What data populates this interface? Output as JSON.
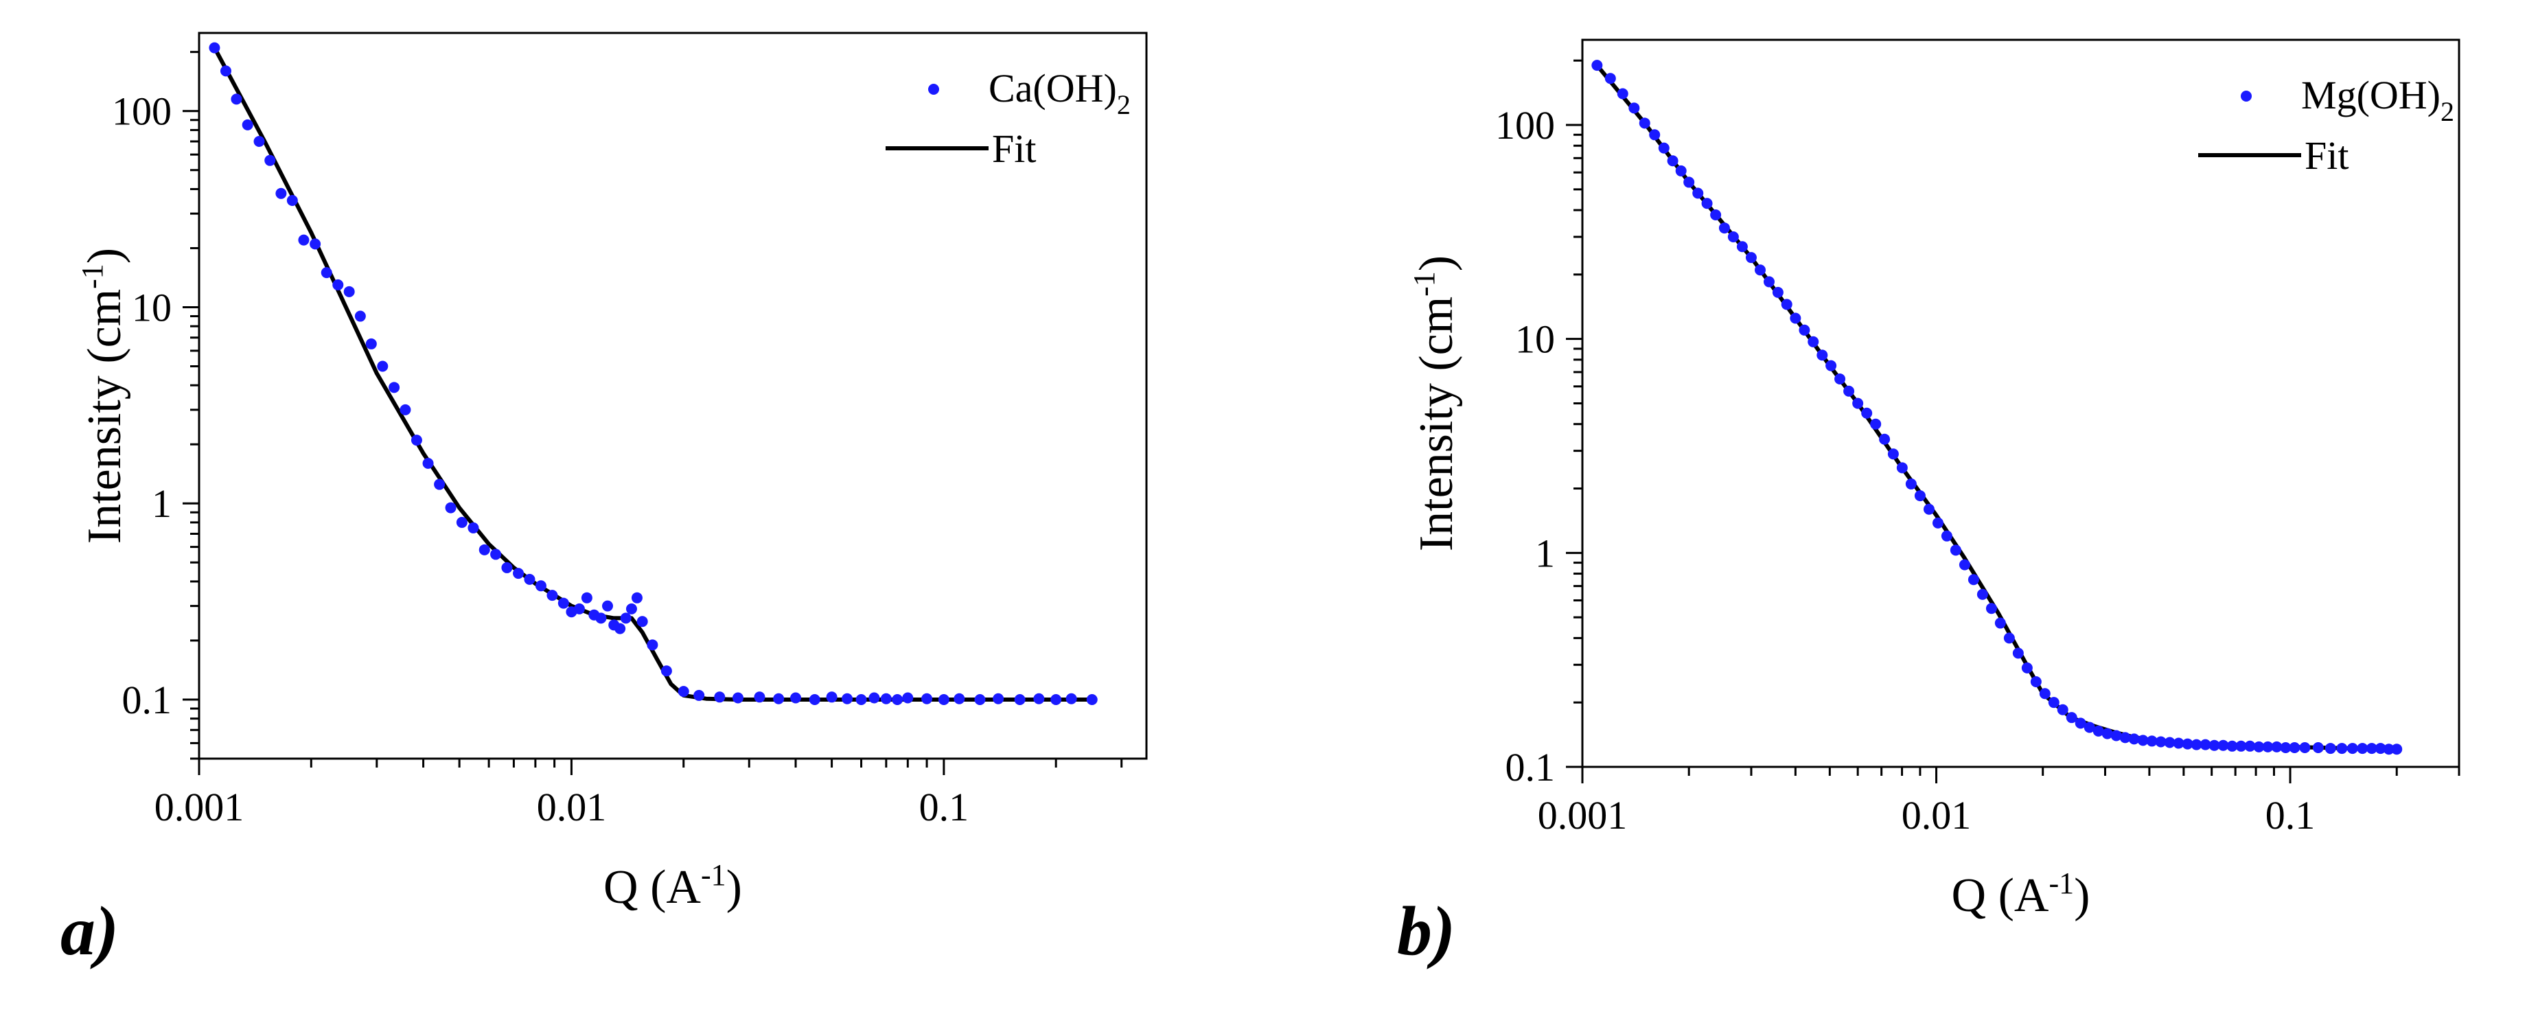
{
  "figure": {
    "panel_a_label": "a)",
    "panel_b_label": "b)"
  },
  "chart_data": [
    {
      "type": "scatter",
      "panel": "a)",
      "xscale": "log",
      "yscale": "log",
      "xlim": [
        0.001,
        0.35
      ],
      "ylim": [
        0.05,
        250
      ],
      "xticks": [
        0.001,
        0.01,
        0.1
      ],
      "xtick_labels": [
        "0.001",
        "0.01",
        "0.1"
      ],
      "yticks": [
        0.1,
        1,
        10,
        100
      ],
      "ytick_labels": [
        "0.1",
        "1",
        "10",
        "100"
      ],
      "xlabel": {
        "main": "Q (A",
        "sup": "-1",
        "end": ")"
      },
      "ylabel": {
        "main": "Intensity (cm",
        "sup": "-1",
        "end": ")"
      },
      "legend": {
        "position": "top-right",
        "data_label": "Ca(OH)",
        "data_sub": "2",
        "fit_label": "Fit"
      },
      "series": [
        {
          "name": "Ca(OH)2",
          "kind": "points",
          "color": "#1a1aff",
          "x": [
            0.0011,
            0.00118,
            0.00126,
            0.00135,
            0.00145,
            0.00155,
            0.00166,
            0.00178,
            0.00191,
            0.00205,
            0.0022,
            0.00236,
            0.00253,
            0.00271,
            0.0029,
            0.00311,
            0.00334,
            0.00358,
            0.00384,
            0.00412,
            0.00442,
            0.00474,
            0.00508,
            0.00545,
            0.00584,
            0.00626,
            0.00671,
            0.0072,
            0.00772,
            0.00828,
            0.00888,
            0.00952,
            0.01,
            0.0105,
            0.011,
            0.0115,
            0.012,
            0.0125,
            0.013,
            0.0135,
            0.014,
            0.0145,
            0.015,
            0.0155,
            0.0165,
            0.018,
            0.02,
            0.022,
            0.025,
            0.028,
            0.032,
            0.036,
            0.04,
            0.045,
            0.05,
            0.055,
            0.06,
            0.065,
            0.07,
            0.075,
            0.08,
            0.09,
            0.1,
            0.11,
            0.125,
            0.14,
            0.16,
            0.18,
            0.2,
            0.22,
            0.25
          ],
          "y": [
            210,
            160,
            115,
            85,
            70,
            56,
            38,
            35,
            22,
            21,
            15,
            13,
            12,
            9.0,
            6.5,
            5.0,
            3.9,
            3.0,
            2.1,
            1.6,
            1.25,
            0.95,
            0.8,
            0.75,
            0.58,
            0.55,
            0.47,
            0.44,
            0.41,
            0.38,
            0.34,
            0.31,
            0.28,
            0.29,
            0.33,
            0.27,
            0.26,
            0.3,
            0.24,
            0.23,
            0.26,
            0.29,
            0.33,
            0.25,
            0.19,
            0.14,
            0.11,
            0.105,
            0.103,
            0.102,
            0.103,
            0.101,
            0.102,
            0.1,
            0.103,
            0.101,
            0.1,
            0.102,
            0.101,
            0.1,
            0.102,
            0.101,
            0.1,
            0.101,
            0.1,
            0.101,
            0.1,
            0.101,
            0.1,
            0.101,
            0.1
          ]
        },
        {
          "name": "Fit",
          "kind": "line",
          "color": "#000000",
          "x": [
            0.0011,
            0.0015,
            0.002,
            0.003,
            0.004,
            0.005,
            0.006,
            0.007,
            0.008,
            0.009,
            0.01,
            0.0115,
            0.013,
            0.0145,
            0.0155,
            0.017,
            0.0185,
            0.02,
            0.023,
            0.028,
            0.04,
            0.06,
            0.1,
            0.25
          ],
          "y": [
            210,
            70,
            24,
            4.6,
            1.8,
            0.95,
            0.62,
            0.47,
            0.39,
            0.34,
            0.3,
            0.27,
            0.26,
            0.26,
            0.22,
            0.16,
            0.12,
            0.105,
            0.101,
            0.1,
            0.1,
            0.1,
            0.1,
            0.1
          ]
        }
      ]
    },
    {
      "type": "scatter",
      "panel": "b)",
      "xscale": "log",
      "yscale": "log",
      "xlim": [
        0.001,
        0.3
      ],
      "ylim": [
        0.1,
        250
      ],
      "xticks": [
        0.001,
        0.01,
        0.1
      ],
      "xtick_labels": [
        "0.001",
        "0.01",
        "0.1"
      ],
      "yticks": [
        0.1,
        1,
        10,
        100
      ],
      "ytick_labels": [
        "0.1",
        "1",
        "10",
        "100"
      ],
      "xlabel": {
        "main": "Q (A",
        "sup": "-1",
        "end": ")"
      },
      "ylabel": {
        "main": "Intensity (cm",
        "sup": "-1",
        "end": ")"
      },
      "legend": {
        "position": "top-right",
        "data_label": "Mg(OH)",
        "data_sub": "2",
        "fit_label": "Fit"
      },
      "series": [
        {
          "name": "Mg(OH)2",
          "kind": "points",
          "color": "#1a1aff",
          "x": [
            0.0011,
            0.0012,
            0.0013,
            0.0014,
            0.0015,
            0.0016,
            0.0017,
            0.0018,
            0.0019,
            0.002,
            0.00212,
            0.00225,
            0.00238,
            0.00252,
            0.00267,
            0.00283,
            0.003,
            0.00318,
            0.00337,
            0.00357,
            0.00378,
            0.004,
            0.00424,
            0.00449,
            0.00476,
            0.00504,
            0.00534,
            0.00566,
            0.006,
            0.00636,
            0.00674,
            0.00714,
            0.00756,
            0.00801,
            0.00849,
            0.009,
            0.00954,
            0.01011,
            0.01071,
            0.01135,
            0.01203,
            0.01275,
            0.01351,
            0.01432,
            0.01517,
            0.01608,
            0.01704,
            0.01806,
            0.01914,
            0.02028,
            0.02149,
            0.02277,
            0.02413,
            0.02557,
            0.0271,
            0.02872,
            0.03043,
            0.03225,
            0.03418,
            0.03622,
            0.03838,
            0.04067,
            0.0431,
            0.04567,
            0.0484,
            0.05129,
            0.05435,
            0.0576,
            0.06104,
            0.06468,
            0.06855,
            0.07264,
            0.07698,
            0.08158,
            0.08645,
            0.09161,
            0.09708,
            0.10288,
            0.11,
            0.12,
            0.13,
            0.14,
            0.15,
            0.16,
            0.17,
            0.18,
            0.19,
            0.2
          ],
          "y": [
            190,
            165,
            140,
            120,
            102,
            90,
            78,
            68,
            61,
            54,
            48,
            43,
            38,
            33,
            30,
            27,
            24,
            21,
            18.5,
            16.5,
            14.5,
            12.5,
            11.0,
            9.7,
            8.4,
            7.5,
            6.5,
            5.7,
            5.0,
            4.5,
            4.0,
            3.4,
            2.9,
            2.5,
            2.1,
            1.85,
            1.6,
            1.38,
            1.2,
            1.03,
            0.88,
            0.75,
            0.64,
            0.55,
            0.47,
            0.4,
            0.34,
            0.29,
            0.25,
            0.22,
            0.2,
            0.185,
            0.17,
            0.16,
            0.153,
            0.147,
            0.143,
            0.14,
            0.137,
            0.135,
            0.133,
            0.132,
            0.131,
            0.13,
            0.129,
            0.128,
            0.127,
            0.127,
            0.126,
            0.126,
            0.125,
            0.125,
            0.125,
            0.124,
            0.124,
            0.124,
            0.123,
            0.123,
            0.123,
            0.123,
            0.122,
            0.122,
            0.122,
            0.122,
            0.122,
            0.122,
            0.121,
            0.121
          ]
        },
        {
          "name": "Fit",
          "kind": "line",
          "color": "#000000",
          "x": [
            0.0011,
            0.0015,
            0.002,
            0.003,
            0.004,
            0.005,
            0.006,
            0.008,
            0.01,
            0.012,
            0.015,
            0.018,
            0.02,
            0.024,
            0.028,
            0.032,
            0.036,
            0.04,
            0.05,
            0.06,
            0.08,
            0.1,
            0.15,
            0.2
          ],
          "y": [
            190,
            102,
            54,
            24,
            12.5,
            7.5,
            5.0,
            2.5,
            1.5,
            0.95,
            0.52,
            0.3,
            0.22,
            0.17,
            0.155,
            0.145,
            0.138,
            0.134,
            0.13,
            0.127,
            0.125,
            0.124,
            0.122,
            0.121
          ]
        }
      ]
    }
  ]
}
